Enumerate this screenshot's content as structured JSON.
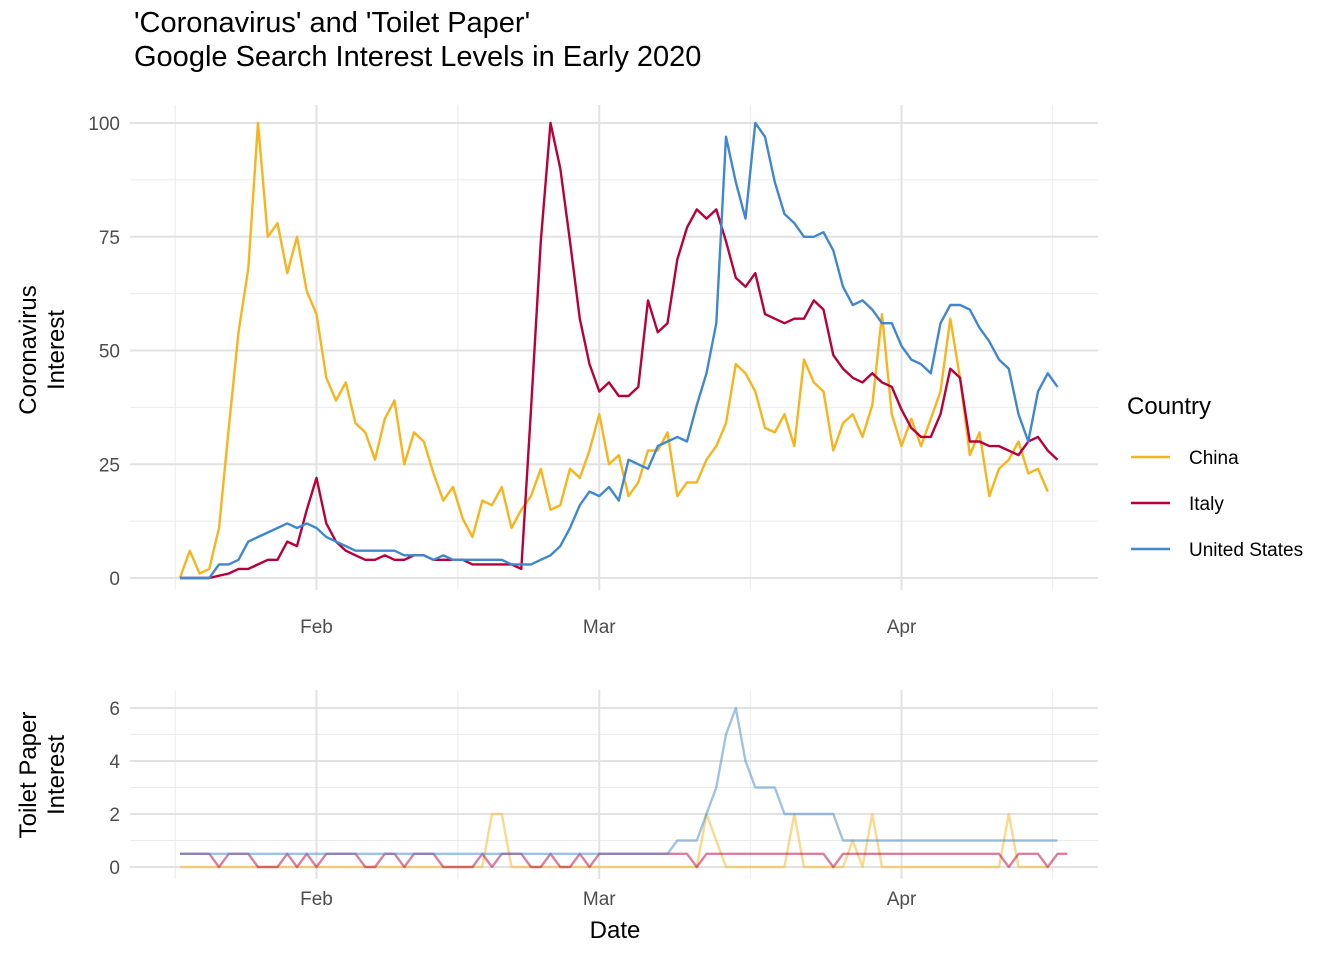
{
  "title": {
    "line1": "'Coronavirus' and 'Toilet Paper'",
    "line2": "Google Search Interest Levels in Early 2020"
  },
  "legend": {
    "title": "Country",
    "items": [
      {
        "label": "China",
        "color": "#F8B41C"
      },
      {
        "label": "Italy",
        "color": "#B8003C"
      },
      {
        "label": "United States",
        "color": "#3F88D0"
      }
    ]
  },
  "chart_data": [
    {
      "type": "line",
      "ylabel": [
        "Coronavirus",
        "Interest"
      ],
      "xlabel": "",
      "x_start": "2020-01-18",
      "ylim": [
        0,
        100
      ],
      "y_ticks": [
        0,
        25,
        50,
        75,
        100
      ],
      "x_ticks": [
        {
          "date": "2020-02-01",
          "label": "Feb"
        },
        {
          "date": "2020-03-01",
          "label": "Mar"
        },
        {
          "date": "2020-04-01",
          "label": "Apr"
        }
      ],
      "series": [
        {
          "name": "China",
          "color": "#F8B41C",
          "values": [
            0,
            6,
            1,
            2,
            11,
            33,
            54,
            68,
            100,
            75,
            78,
            67,
            75,
            63,
            58,
            44,
            39,
            43,
            34,
            32,
            26,
            35,
            39,
            25,
            32,
            30,
            23,
            17,
            20,
            13,
            9,
            17,
            16,
            20,
            11,
            15,
            18,
            24,
            15,
            16,
            24,
            22,
            28,
            36,
            25,
            27,
            18,
            21,
            28,
            28,
            32,
            18,
            21,
            21,
            26,
            29,
            34,
            47,
            45,
            41,
            33,
            32,
            36,
            29,
            48,
            43,
            41,
            28,
            34,
            36,
            31,
            38,
            58,
            36,
            29,
            35,
            29,
            35,
            41,
            57,
            44,
            27,
            32,
            18,
            24,
            26,
            30,
            23,
            24,
            19
          ]
        },
        {
          "name": "Italy",
          "color": "#B8003C",
          "values": [
            0,
            0,
            0,
            0,
            0.5,
            1,
            2,
            2,
            3,
            4,
            4,
            8,
            7,
            15,
            22,
            12,
            8,
            6,
            5,
            4,
            4,
            5,
            4,
            4,
            5,
            5,
            4,
            4,
            4,
            4,
            3,
            3,
            3,
            3,
            3,
            2,
            37,
            74,
            100,
            90,
            74,
            57,
            47,
            41,
            43,
            40,
            40,
            42,
            61,
            54,
            56,
            70,
            77,
            81,
            79,
            81,
            74,
            66,
            64,
            67,
            58,
            57,
            56,
            57,
            57,
            61,
            59,
            49,
            46,
            44,
            43,
            45,
            43,
            42,
            37,
            33,
            31,
            31,
            36,
            46,
            44,
            30,
            30,
            29,
            29,
            28,
            27,
            30,
            31,
            28,
            26
          ]
        },
        {
          "name": "United States",
          "color": "#3F88D0",
          "values": [
            0,
            0,
            0,
            0,
            3,
            3,
            4,
            8,
            9,
            10,
            11,
            12,
            11,
            12,
            11,
            9,
            8,
            7,
            6,
            6,
            6,
            6,
            6,
            5,
            5,
            5,
            4,
            5,
            4,
            4,
            4,
            4,
            4,
            4,
            3,
            3,
            3,
            4,
            5,
            7,
            11,
            16,
            19,
            18,
            20,
            17,
            26,
            25,
            24,
            29,
            30,
            31,
            30,
            38,
            45,
            56,
            97,
            87,
            79,
            100,
            97,
            87,
            80,
            78,
            75,
            75,
            76,
            72,
            64,
            60,
            61,
            59,
            56,
            56,
            51,
            48,
            47,
            45,
            56,
            60,
            60,
            59,
            55,
            52,
            48,
            46,
            36,
            30,
            41,
            45,
            42
          ]
        }
      ]
    },
    {
      "type": "line",
      "ylabel": [
        "Toilet Paper",
        "Interest"
      ],
      "xlabel": "Date",
      "x_start": "2020-01-18",
      "ylim": [
        0,
        6
      ],
      "y_ticks": [
        0,
        2,
        4,
        6
      ],
      "x_ticks": [
        {
          "date": "2020-02-01",
          "label": "Feb"
        },
        {
          "date": "2020-03-01",
          "label": "Mar"
        },
        {
          "date": "2020-04-01",
          "label": "Apr"
        }
      ],
      "series": [
        {
          "name": "China",
          "color": "#F8B41C",
          "values": [
            0,
            0,
            0,
            0,
            0,
            0,
            0,
            0,
            0,
            0,
            0,
            0,
            0,
            0,
            0,
            0,
            0,
            0,
            0,
            0,
            0,
            0,
            0,
            0,
            0,
            0,
            0,
            0,
            0,
            0,
            0,
            0,
            2,
            2,
            0,
            0,
            0,
            0,
            0,
            0,
            0,
            0,
            0,
            0,
            0,
            0,
            0,
            0,
            0,
            0,
            0,
            0,
            0,
            0,
            2,
            1,
            0,
            0,
            0,
            0,
            0,
            0,
            0,
            2,
            0,
            0,
            0,
            0,
            0,
            1,
            0,
            2,
            0,
            0,
            0,
            0,
            0,
            0,
            0,
            0,
            0,
            0,
            0,
            0,
            0,
            2,
            0,
            0,
            0,
            0
          ]
        },
        {
          "name": "Italy",
          "color": "#B8003C",
          "values": [
            0.5,
            0.5,
            0.5,
            0.5,
            0,
            0.5,
            0.5,
            0.5,
            0,
            0,
            0,
            0.5,
            0,
            0.5,
            0,
            0.5,
            0.5,
            0.5,
            0.5,
            0,
            0,
            0.5,
            0.5,
            0,
            0.5,
            0.5,
            0.5,
            0,
            0,
            0,
            0,
            0.5,
            0,
            0.5,
            0.5,
            0.5,
            0,
            0,
            0.5,
            0,
            0,
            0.5,
            0,
            0.5,
            0.5,
            0.5,
            0.5,
            0.5,
            0.5,
            0.5,
            0.5,
            0.5,
            0.5,
            0,
            0.5,
            0.5,
            0.5,
            0.5,
            0.5,
            0.5,
            0.5,
            0.5,
            0.5,
            0.5,
            0.5,
            0.5,
            0.5,
            0,
            0.5,
            0.5,
            0.5,
            0.5,
            0.5,
            0.5,
            0.5,
            0.5,
            0.5,
            0.5,
            0.5,
            0.5,
            0.5,
            0.5,
            0.5,
            0.5,
            0.5,
            0,
            0.5,
            0.5,
            0.5,
            0,
            0.5,
            0.5
          ]
        },
        {
          "name": "United States",
          "color": "#3F88D0",
          "values": [
            0.5,
            0.5,
            0.5,
            0.5,
            0.5,
            0.5,
            0.5,
            0.5,
            0.5,
            0.5,
            0.5,
            0.5,
            0.5,
            0.5,
            0.5,
            0.5,
            0.5,
            0.5,
            0.5,
            0.5,
            0.5,
            0.5,
            0.5,
            0.5,
            0.5,
            0.5,
            0.5,
            0.5,
            0.5,
            0.5,
            0.5,
            0.5,
            0.5,
            0.5,
            0.5,
            0.5,
            0.5,
            0.5,
            0.5,
            0.5,
            0.5,
            0.5,
            0.5,
            0.5,
            0.5,
            0.5,
            0.5,
            0.5,
            0.5,
            0.5,
            0.5,
            1,
            1,
            1,
            2,
            3,
            5,
            6,
            4,
            3,
            3,
            3,
            2,
            2,
            2,
            2,
            2,
            2,
            1,
            1,
            1,
            1,
            1,
            1,
            1,
            1,
            1,
            1,
            1,
            1,
            1,
            1,
            1,
            1,
            1,
            1,
            1,
            1,
            1,
            1,
            1
          ]
        }
      ]
    }
  ]
}
